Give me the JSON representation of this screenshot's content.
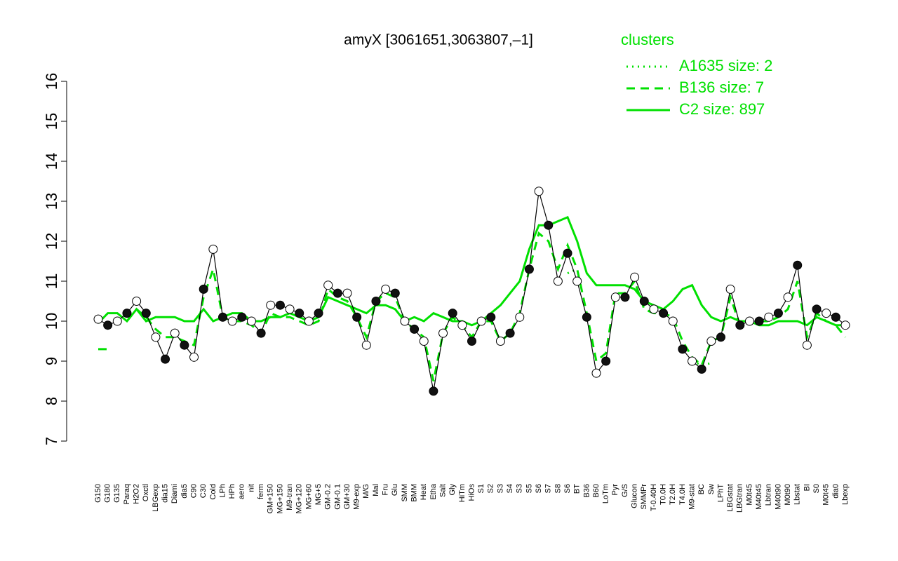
{
  "chart_data": {
    "type": "line",
    "title": "amyX [3061651,3063807,–1]",
    "legend_title": "clusters",
    "categories": [
      "G150",
      "G180",
      "G135",
      "Paraq",
      "H2O2",
      "Oxctl",
      "LBGexp",
      "dia15",
      "Diami",
      "dia5",
      "C90",
      "C30",
      "Cold",
      "LPh",
      "HPh",
      "aero",
      "nit",
      "ferm",
      "GM+150",
      "MG+150",
      "M9-tran",
      "MG+120",
      "MG+60",
      "MG+5",
      "GM-0.2",
      "GM-0.1",
      "GM+30",
      "M9-exp",
      "M/G",
      "Mal",
      "Fru",
      "Glu",
      "SMM",
      "BMM",
      "Heat",
      "Etha",
      "Salt",
      "Gly",
      "HiTm",
      "HiOs",
      "S1",
      "S2",
      "S3",
      "S4",
      "S3",
      "S5",
      "S6",
      "S7",
      "S8",
      "S6",
      "BT",
      "B36",
      "B60",
      "LoTm",
      "Pyr",
      "G/S",
      "Glucon",
      "SMMPr",
      "T-0.40H",
      "T0.0H",
      "T2.0H",
      "T4.0H",
      "M9-stat",
      "BC",
      "Sw",
      "LPhT",
      "LBGstat",
      "LBGtran",
      "M0t45",
      "M40t45",
      "Lbtran",
      "M40t90",
      "M0t90",
      "Lbstat",
      "BI",
      "S0",
      "M0t45",
      "dia0",
      "Lbexp"
    ],
    "values": [
      10.05,
      9.9,
      10.0,
      10.2,
      10.5,
      10.2,
      9.6,
      9.05,
      9.7,
      9.4,
      9.1,
      10.8,
      11.8,
      10.1,
      10.0,
      10.1,
      10.0,
      9.7,
      10.4,
      10.4,
      10.3,
      10.2,
      10.0,
      10.2,
      10.9,
      10.7,
      10.7,
      10.1,
      9.4,
      10.5,
      10.8,
      10.7,
      10.0,
      9.8,
      9.5,
      8.25,
      9.7,
      10.2,
      9.9,
      9.5,
      10.0,
      10.1,
      9.5,
      9.7,
      10.1,
      11.3,
      13.25,
      12.4,
      11.0,
      11.7,
      11.0,
      10.1,
      8.7,
      9.0,
      10.6,
      10.6,
      11.1,
      10.5,
      10.3,
      10.2,
      10.0,
      9.3,
      9.0,
      8.8,
      9.5,
      9.6,
      10.8,
      9.9,
      10.0,
      10.0,
      10.1,
      10.2,
      10.6,
      11.4,
      9.4,
      10.3,
      10.2,
      10.1,
      9.9
    ],
    "series": [
      {
        "name": "A1635 size: 2",
        "color": "#00e000",
        "dash": "dotted",
        "values": [
          null,
          null,
          null,
          null,
          null,
          null,
          null,
          null,
          null,
          null,
          null,
          null,
          null,
          null,
          null,
          null,
          null,
          null,
          null,
          null,
          null,
          null,
          null,
          null,
          null,
          null,
          null,
          null,
          null,
          null,
          null,
          null,
          null,
          null,
          null,
          null,
          null,
          null,
          null,
          null,
          null,
          null,
          null,
          null,
          null,
          null,
          null,
          null,
          null,
          11.2,
          11.3,
          null,
          null,
          null,
          null,
          null,
          null,
          null,
          null,
          null,
          null,
          null,
          9.0,
          8.9,
          8.95,
          null,
          null,
          null,
          null,
          null,
          null,
          null,
          null,
          null,
          null,
          null,
          null,
          null,
          null
        ]
      },
      {
        "name": "B136 size: 7",
        "color": "#00e000",
        "dash": "dashed",
        "values": [
          9.3,
          9.3,
          null,
          10.0,
          10.3,
          10.1,
          9.8,
          9.6,
          9.6,
          9.5,
          9.4,
          10.6,
          11.3,
          10.1,
          10.0,
          10.0,
          9.9,
          9.7,
          10.2,
          10.1,
          10.1,
          10.0,
          9.9,
          10.0,
          10.8,
          10.6,
          10.5,
          10.1,
          9.6,
          10.5,
          10.7,
          10.6,
          10.0,
          9.8,
          9.6,
          8.5,
          9.7,
          10.1,
          9.9,
          9.6,
          10.0,
          10.0,
          9.5,
          9.7,
          10.2,
          11.3,
          12.2,
          12.0,
          11.3,
          11.9,
          11.3,
          10.2,
          9.0,
          9.2,
          10.7,
          10.7,
          11.0,
          10.3,
          10.2,
          10.2,
          10.1,
          9.5,
          9.1,
          8.9,
          9.5,
          9.6,
          10.6,
          9.9,
          10.0,
          10.0,
          10.0,
          10.1,
          10.3,
          11.0,
          9.6,
          10.2,
          10.0,
          9.9,
          9.6
        ]
      },
      {
        "name": "C2 size: 897",
        "color": "#00e000",
        "dash": "solid",
        "values": [
          9.95,
          10.2,
          10.2,
          10.0,
          10.3,
          10.0,
          10.1,
          10.1,
          10.1,
          10.0,
          10.0,
          10.3,
          10.0,
          10.1,
          10.2,
          10.2,
          10.0,
          10.0,
          10.1,
          10.1,
          10.2,
          10.1,
          10.0,
          10.1,
          10.6,
          10.5,
          10.4,
          10.3,
          10.2,
          10.4,
          10.4,
          10.3,
          10.0,
          10.1,
          10.0,
          10.2,
          10.1,
          10.0,
          10.0,
          9.9,
          10.0,
          10.2,
          10.4,
          10.7,
          11.0,
          11.8,
          12.4,
          12.4,
          12.5,
          12.6,
          12.0,
          11.2,
          10.9,
          10.9,
          10.9,
          10.9,
          10.8,
          10.5,
          10.4,
          10.3,
          10.5,
          10.8,
          10.9,
          10.4,
          10.1,
          10.0,
          10.1,
          10.0,
          10.0,
          9.9,
          9.9,
          10.0,
          10.0,
          10.0,
          9.9,
          10.1,
          10.0,
          9.9,
          9.9
        ]
      }
    ],
    "ylim": [
      7,
      16
    ],
    "yticks": [
      7,
      8,
      9,
      10,
      11,
      12,
      13,
      14,
      15,
      16
    ]
  }
}
